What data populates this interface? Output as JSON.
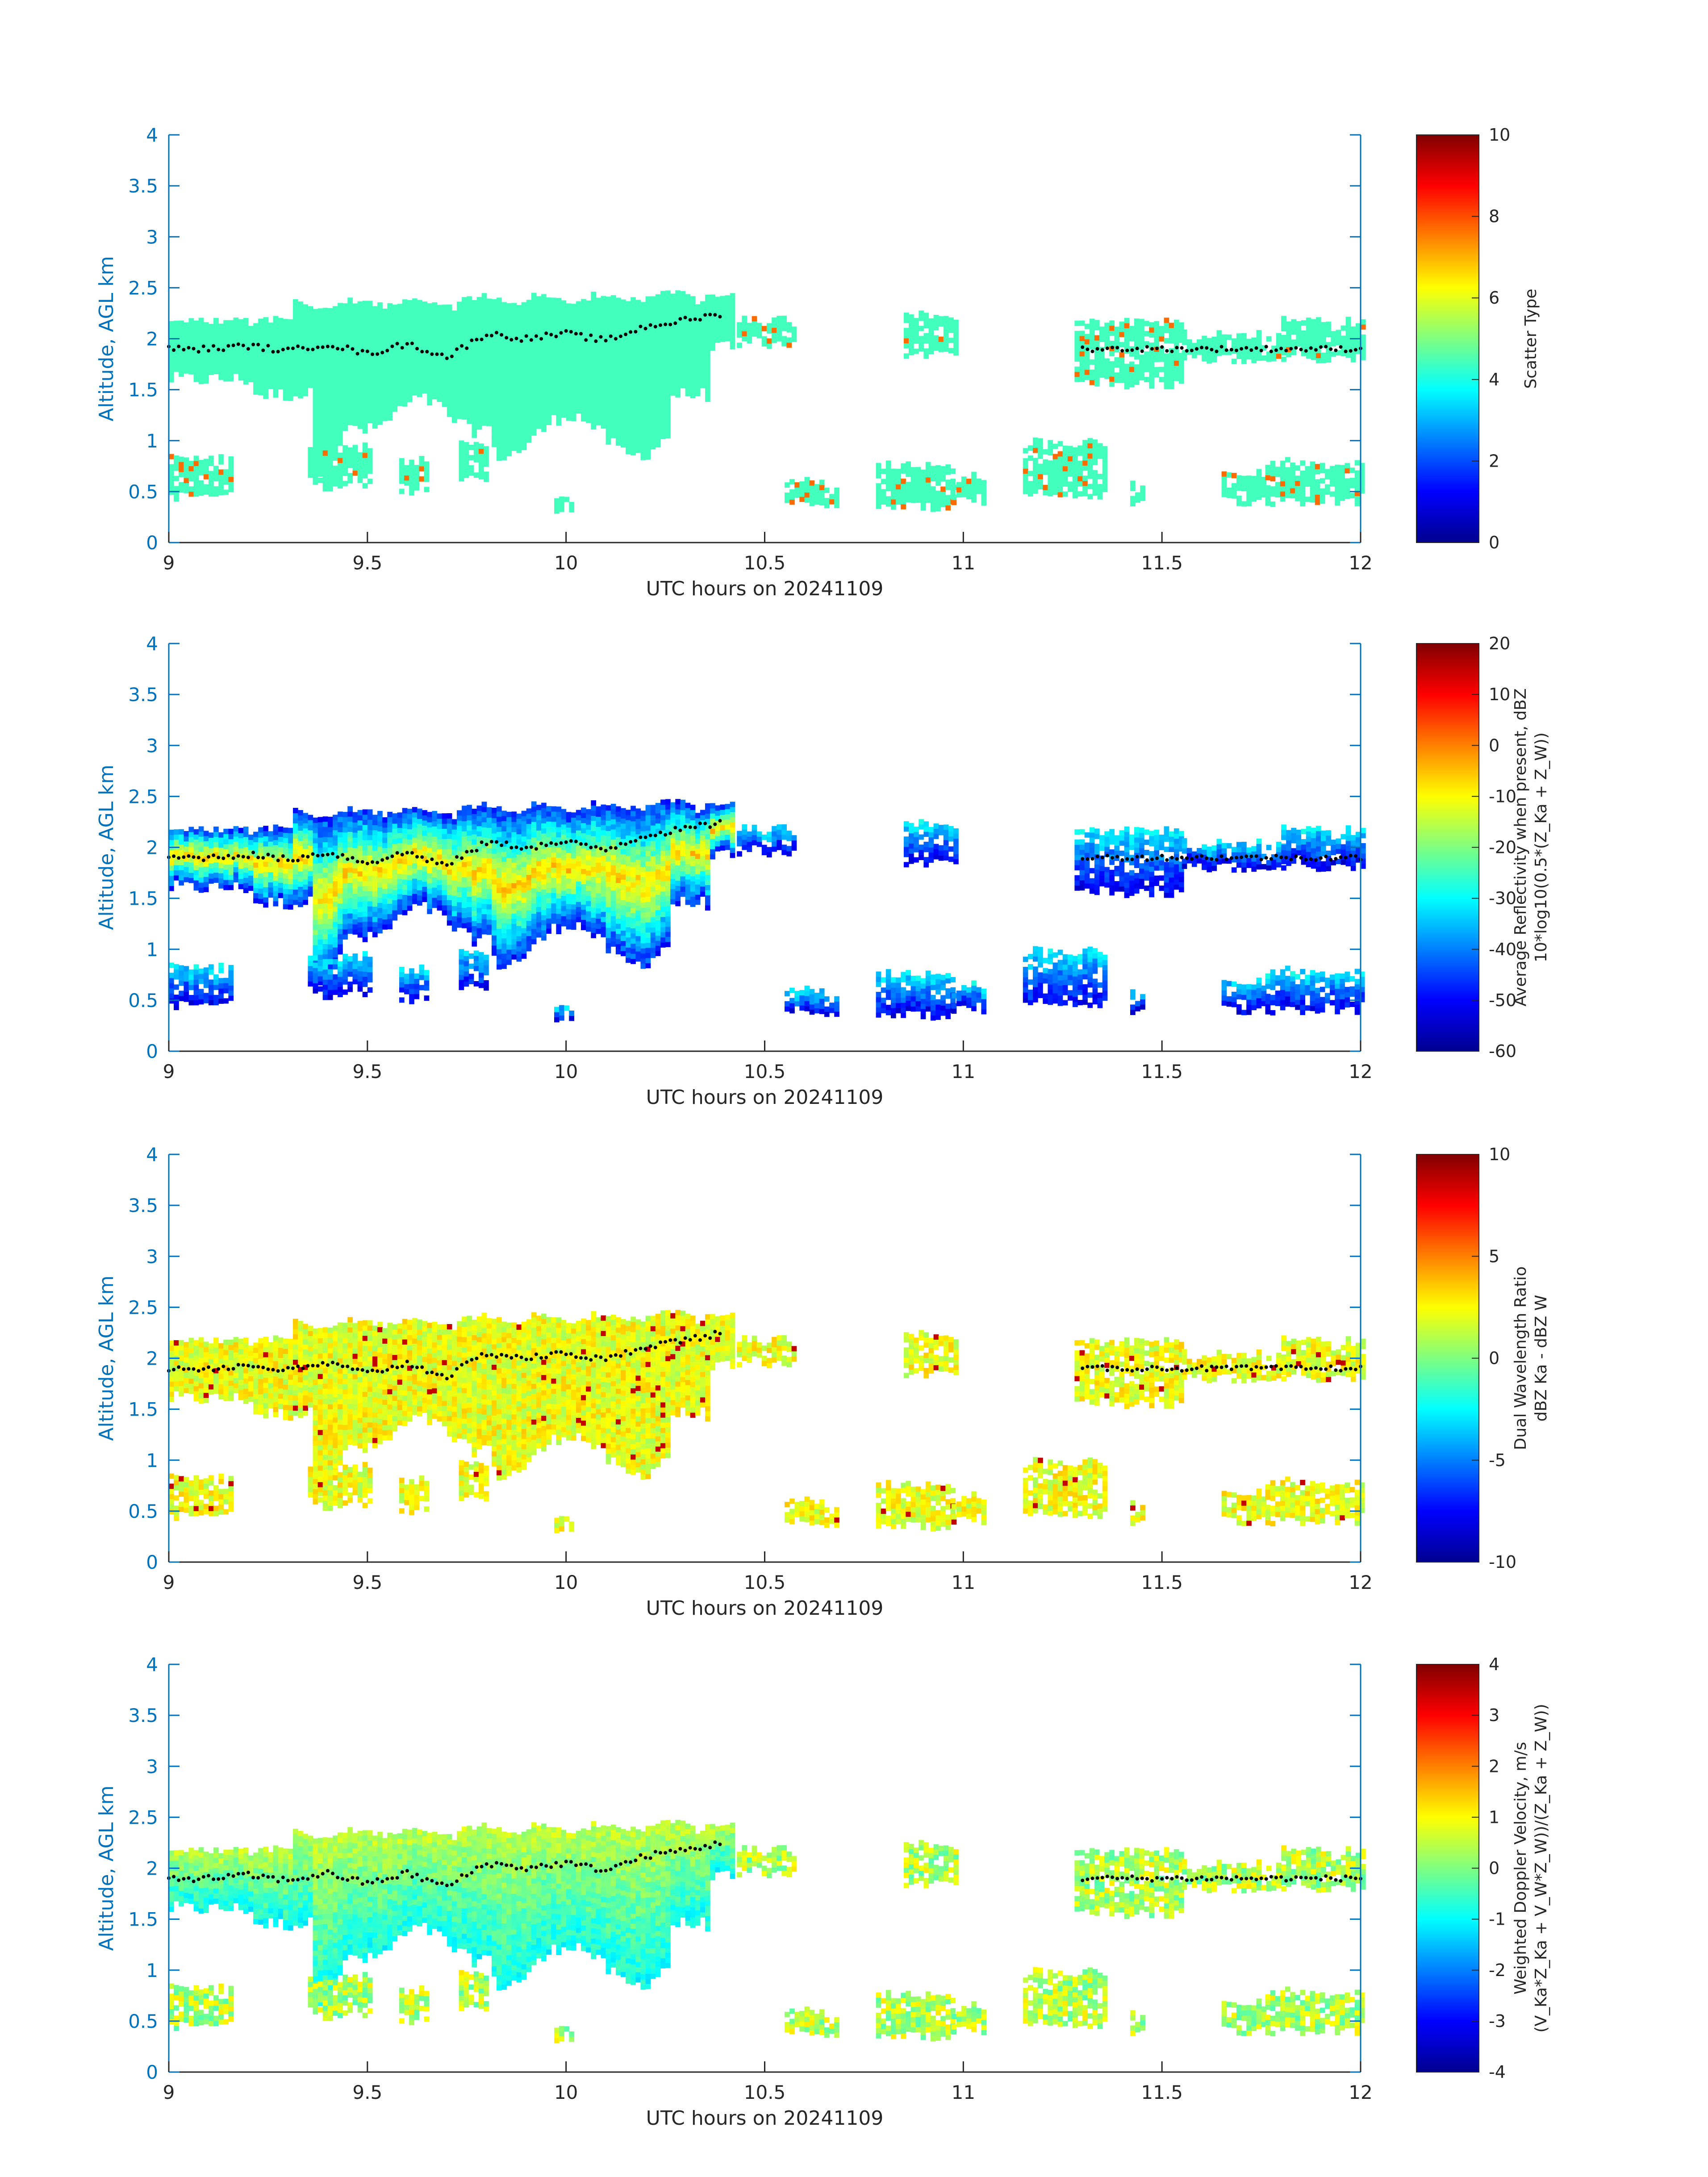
{
  "panels": [
    {
      "chart_data": {
        "type": "heatmap",
        "xlabel": "UTC hours on 20241109",
        "ylabel": "Altitude, AGL km",
        "xlim": [
          9,
          12
        ],
        "ylim": [
          0,
          4
        ],
        "xticks": [
          "9",
          "9.5",
          "10",
          "10.5",
          "11",
          "11.5",
          "12"
        ],
        "yticks": [
          "0",
          "0.5",
          "1",
          "1.5",
          "2",
          "2.5",
          "3",
          "3.5",
          "4"
        ],
        "colorbar": {
          "label_lines": [
            "Scatter Type"
          ],
          "clim": [
            0,
            10
          ],
          "ticks": [
            "0",
            "2",
            "4",
            "6",
            "8",
            "10"
          ],
          "colormap": "jet"
        },
        "field": "scatter_type"
      }
    },
    {
      "chart_data": {
        "type": "heatmap",
        "xlabel": "UTC hours on 20241109",
        "ylabel": "Altitude, AGL km",
        "xlim": [
          9,
          12
        ],
        "ylim": [
          0,
          4
        ],
        "xticks": [
          "9",
          "9.5",
          "10",
          "10.5",
          "11",
          "11.5",
          "12"
        ],
        "yticks": [
          "0",
          "0.5",
          "1",
          "1.5",
          "2",
          "2.5",
          "3",
          "3.5",
          "4"
        ],
        "colorbar": {
          "label_lines": [
            "Average Reflectivity when present, dBZ",
            "10*log10(0.5*(Z_Ka + Z_W))"
          ],
          "clim": [
            -60,
            20
          ],
          "ticks": [
            "-60",
            "-50",
            "-40",
            "-30",
            "-20",
            "-10",
            "0",
            "10",
            "20"
          ],
          "colormap": "jet"
        },
        "field": "reflectivity"
      }
    },
    {
      "chart_data": {
        "type": "heatmap",
        "xlabel": "UTC hours on 20241109",
        "ylabel": "Altitude, AGL km",
        "xlim": [
          9,
          12
        ],
        "ylim": [
          0,
          4
        ],
        "xticks": [
          "9",
          "9.5",
          "10",
          "10.5",
          "11",
          "11.5",
          "12"
        ],
        "yticks": [
          "0",
          "0.5",
          "1",
          "1.5",
          "2",
          "2.5",
          "3",
          "3.5",
          "4"
        ],
        "colorbar": {
          "label_lines": [
            "Dual Wavelength Ratio",
            "dBZ Ka - dBZ W"
          ],
          "clim": [
            -10,
            10
          ],
          "ticks": [
            "-10",
            "-5",
            "0",
            "5",
            "10"
          ],
          "colormap": "jet"
        },
        "field": "dwr"
      }
    },
    {
      "chart_data": {
        "type": "heatmap",
        "xlabel": "UTC hours on 20241109",
        "ylabel": "Altitude, AGL km",
        "xlim": [
          9,
          12
        ],
        "ylim": [
          0,
          4
        ],
        "xticks": [
          "9",
          "9.5",
          "10",
          "10.5",
          "11",
          "11.5",
          "12"
        ],
        "yticks": [
          "0",
          "0.5",
          "1",
          "1.5",
          "2",
          "2.5",
          "3",
          "3.5",
          "4"
        ],
        "colorbar": {
          "label_lines": [
            "Weighted Doppler Velocity, m/s",
            "(V_Ka*Z_Ka + V_W*Z_W))/(Z_Ka + Z_W))"
          ],
          "clim": [
            -4,
            4
          ],
          "ticks": [
            "-4",
            "-3",
            "-2",
            "-1",
            "0",
            "1",
            "2",
            "3",
            "4"
          ],
          "colormap": "jet"
        },
        "field": "velocity"
      }
    }
  ],
  "cloud_base_line": {
    "description_hidden": false,
    "x": [
      9.0,
      9.1,
      9.2,
      9.3,
      9.4,
      9.5,
      9.6,
      9.7,
      9.8,
      9.9,
      10.0,
      10.1,
      10.2,
      10.3,
      10.4
    ],
    "y": [
      1.9,
      1.9,
      1.93,
      1.88,
      1.95,
      1.85,
      1.95,
      1.82,
      2.05,
      2.0,
      2.05,
      1.98,
      2.12,
      2.18,
      2.25
    ]
  }
}
